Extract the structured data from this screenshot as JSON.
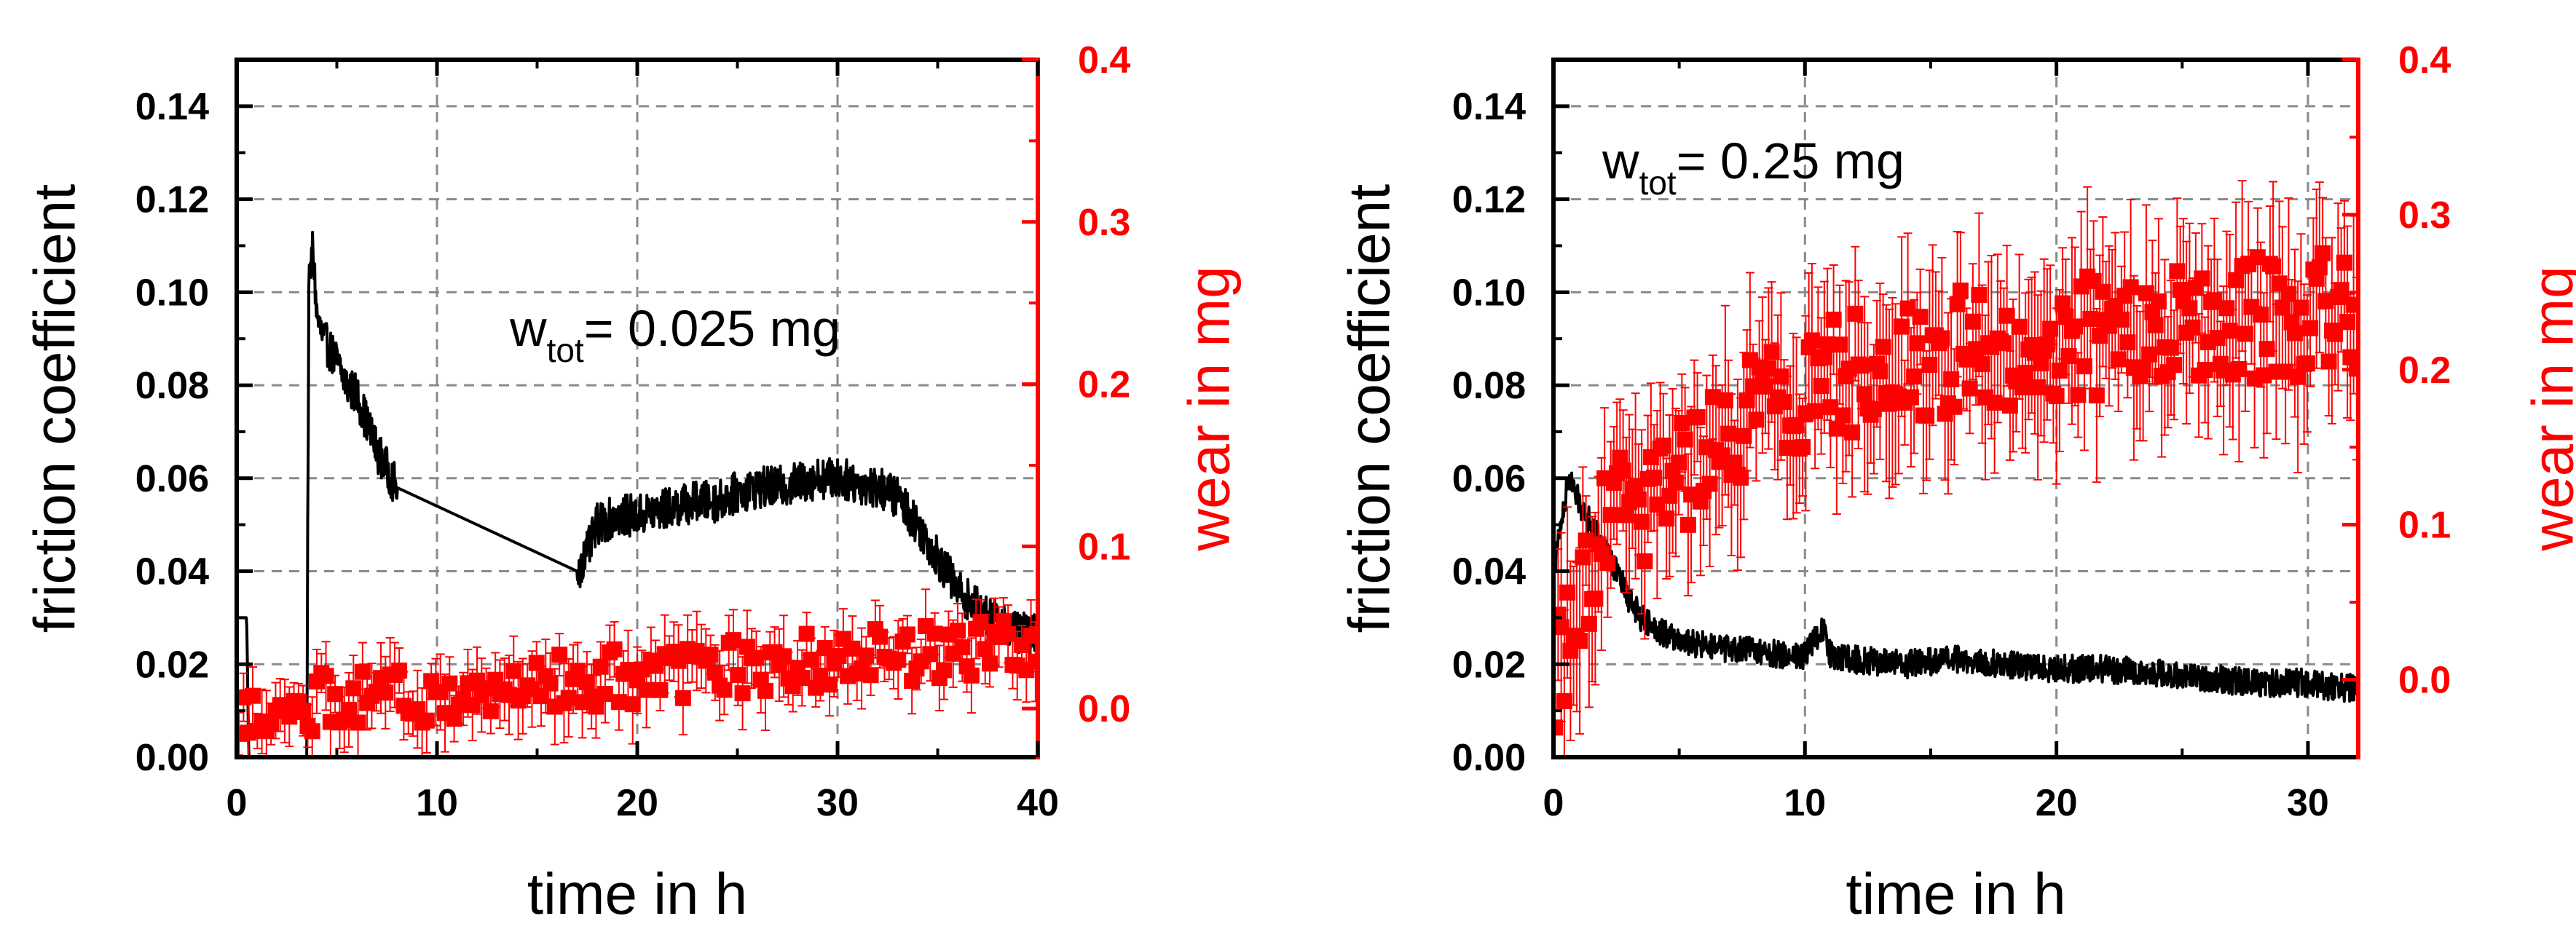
{
  "colors": {
    "friction": "#000000",
    "wear": "#ff0000",
    "grid": "#8a8a8a"
  },
  "chart_data": [
    {
      "type": "line",
      "title": "",
      "xlabel": "time in h",
      "ylabel": "friction coefficient",
      "y2label": "wear in mg",
      "xlim": [
        0,
        40
      ],
      "ylim": [
        0,
        0.15
      ],
      "y2lim": [
        -0.03,
        0.4
      ],
      "xticks": [
        "0",
        "10",
        "20",
        "30",
        "40"
      ],
      "yticks": [
        "0.00",
        "0.02",
        "0.04",
        "0.06",
        "0.08",
        "0.10",
        "0.12",
        "0.14"
      ],
      "y2ticks": [
        "0.0",
        "0.1",
        "0.2",
        "0.3",
        "0.4"
      ],
      "grid": true,
      "annotation": {
        "prefix": "w",
        "subscript": "tot",
        "suffix": "= 0.025 mg"
      },
      "series": [
        {
          "name": "friction coefficient",
          "axis": "left",
          "style": "line",
          "x": [
            0,
            0.5,
            0.6,
            3.5,
            3.6,
            3.8,
            4,
            4.3,
            4.6,
            5,
            5.5,
            6,
            6.5,
            7,
            7.5,
            8,
            17,
            17.5,
            18,
            19,
            20,
            21,
            22,
            23,
            24,
            25,
            26,
            27,
            28,
            29,
            30,
            31,
            32,
            33,
            34,
            35,
            36,
            37,
            38,
            39,
            40
          ],
          "y": [
            0.03,
            0.03,
            0.0,
            0.0,
            0.1,
            0.11,
            0.095,
            0.09,
            0.088,
            0.085,
            0.08,
            0.078,
            0.072,
            0.066,
            0.062,
            0.058,
            0.04,
            0.044,
            0.05,
            0.052,
            0.052,
            0.053,
            0.054,
            0.055,
            0.055,
            0.057,
            0.058,
            0.058,
            0.059,
            0.06,
            0.06,
            0.059,
            0.058,
            0.056,
            0.05,
            0.043,
            0.036,
            0.032,
            0.029,
            0.027,
            0.026
          ],
          "noise": 0.0045
        },
        {
          "name": "wear",
          "axis": "right",
          "style": "markers",
          "x_start": 0,
          "x_end": 40,
          "count": 175,
          "trend_x": [
            0,
            10,
            20,
            30,
            40
          ],
          "trend_y": [
            0.0,
            0.01,
            0.02,
            0.03,
            0.04
          ],
          "scatter": 0.018,
          "error": 0.018
        }
      ]
    },
    {
      "type": "line",
      "title": "",
      "xlabel": "time in h",
      "ylabel": "friction coefficient",
      "y2label": "wear in mg",
      "xlim": [
        0,
        32
      ],
      "ylim": [
        0,
        0.15
      ],
      "y2lim": [
        -0.05,
        0.4
      ],
      "xticks": [
        "0",
        "10",
        "20",
        "30"
      ],
      "yticks": [
        "0.00",
        "0.02",
        "0.04",
        "0.06",
        "0.08",
        "0.10",
        "0.12",
        "0.14"
      ],
      "y2ticks": [
        "0.0",
        "0.1",
        "0.2",
        "0.3",
        "0.4"
      ],
      "grid": true,
      "annotation": {
        "prefix": "w",
        "subscript": "tot",
        "suffix": "= 0.25 mg"
      },
      "series": [
        {
          "name": "friction coefficient",
          "axis": "left",
          "style": "line",
          "x": [
            0,
            0.3,
            0.6,
            1,
            1.5,
            2,
            2.5,
            3,
            3.5,
            4,
            5,
            6,
            7,
            8,
            9,
            10,
            10.7,
            11,
            12,
            14,
            16,
            18,
            20,
            22,
            24,
            26,
            28,
            30,
            31,
            32
          ],
          "y": [
            0.04,
            0.05,
            0.06,
            0.055,
            0.05,
            0.045,
            0.04,
            0.034,
            0.03,
            0.028,
            0.025,
            0.024,
            0.023,
            0.023,
            0.022,
            0.022,
            0.028,
            0.022,
            0.021,
            0.02,
            0.021,
            0.02,
            0.019,
            0.019,
            0.018,
            0.017,
            0.016,
            0.016,
            0.015,
            0.015
          ],
          "noise": 0.003
        },
        {
          "name": "wear",
          "axis": "right",
          "style": "markers",
          "x_start": 0,
          "x_end": 32,
          "count": 260,
          "trend_x": [
            0,
            1,
            2,
            4,
            6,
            8,
            10,
            15,
            20,
            25,
            30,
            32
          ],
          "trend_y": [
            0.0,
            0.05,
            0.1,
            0.12,
            0.14,
            0.17,
            0.19,
            0.21,
            0.22,
            0.23,
            0.235,
            0.24
          ],
          "scatter": 0.04,
          "error": 0.045
        }
      ]
    }
  ]
}
